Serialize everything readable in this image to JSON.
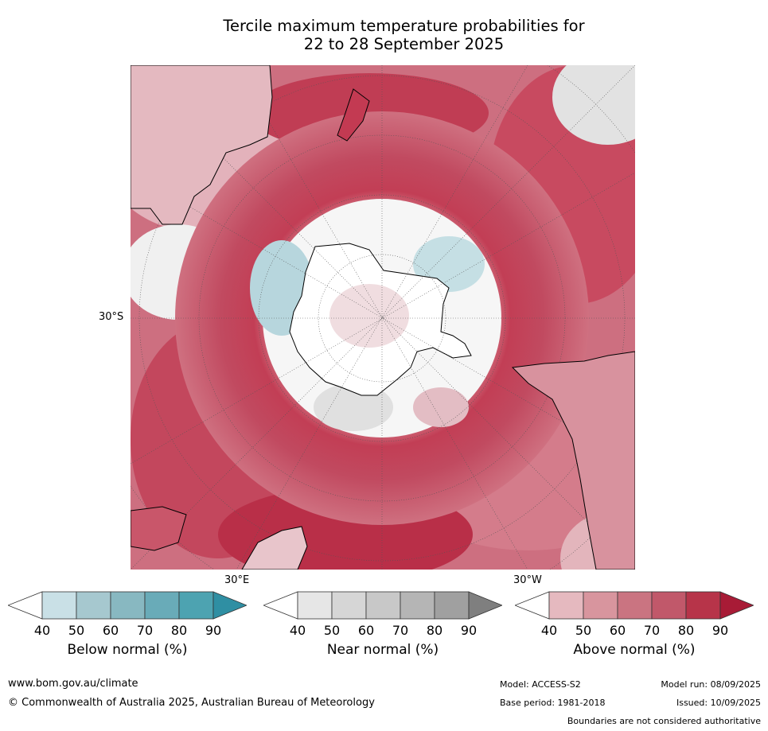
{
  "title": {
    "line1": "Tercile maximum temperature probabilities for",
    "line2": "22 to 28 September 2025"
  },
  "map": {
    "lat_label": "30°S",
    "lon_label_east": "30°E",
    "lon_label_west": "30°W"
  },
  "colorbars": [
    {
      "label": "Below normal (%)",
      "ticks": [
        "40",
        "50",
        "60",
        "70",
        "80",
        "90"
      ],
      "colors": [
        "#ffffff",
        "#c9e0e6",
        "#a6c8cf",
        "#88b8c1",
        "#69abb8",
        "#4da3b1",
        "#2f8fa3"
      ]
    },
    {
      "label": "Near normal (%)",
      "ticks": [
        "40",
        "50",
        "60",
        "70",
        "80",
        "90"
      ],
      "colors": [
        "#ffffff",
        "#e6e6e6",
        "#d6d6d6",
        "#c8c8c8",
        "#b5b5b5",
        "#a0a0a0",
        "#7f7f7f"
      ]
    },
    {
      "label": "Above normal (%)",
      "ticks": [
        "40",
        "50",
        "60",
        "70",
        "80",
        "90"
      ],
      "colors": [
        "#ffffff",
        "#e5b9bf",
        "#d8959e",
        "#ca7481",
        "#c1586a",
        "#b73449",
        "#a81b36"
      ]
    }
  ],
  "footer": {
    "url": "www.bom.gov.au/climate",
    "copyright": "© Commonwealth of Australia 2025, Australian Bureau of Meteorology",
    "model": "Model: ACCESS-S2",
    "model_run": "Model run: 08/09/2025",
    "base_period": "Base period: 1981-2018",
    "issued": "Issued: 10/09/2025",
    "disclaimer": "Boundaries are not considered authoritative"
  }
}
